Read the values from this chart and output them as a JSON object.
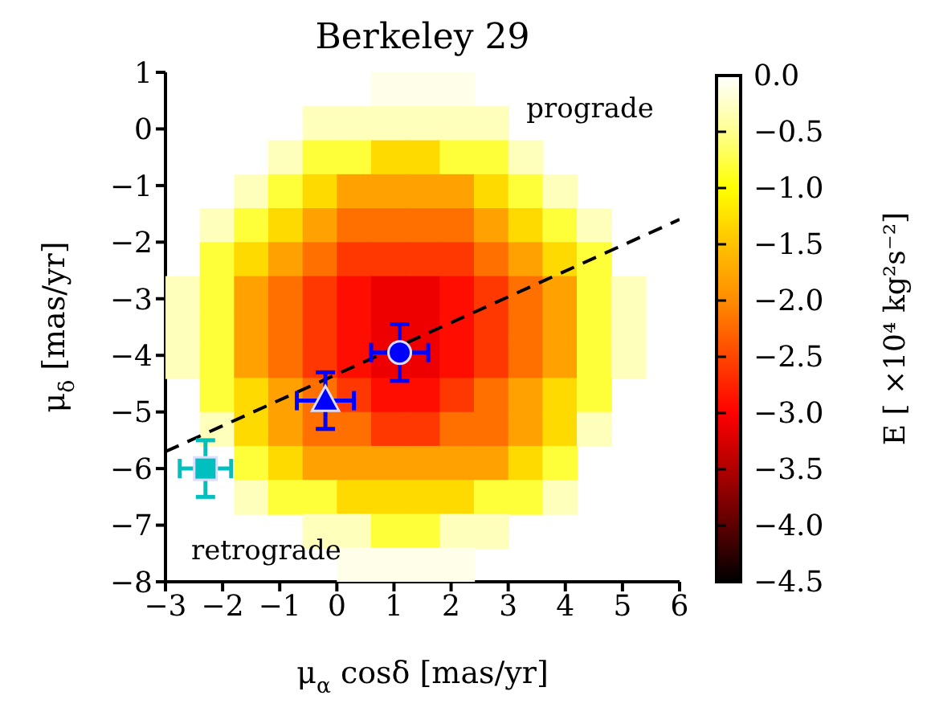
{
  "chart_data": {
    "type": "heatmap",
    "title": "Berkeley 29",
    "xlabel": "μ$_{α}$ cosδ [mas/yr]",
    "ylabel": "μ$_{δ}$ [mas/yr]",
    "clabel": "E [ ×10⁴ kg²s⁻²]",
    "xlim": [
      -3,
      6
    ],
    "ylim": [
      -8,
      1
    ],
    "xticks": [
      {
        "value": -3,
        "label": "−3"
      },
      {
        "value": -2,
        "label": "−2"
      },
      {
        "value": -1,
        "label": "−1"
      },
      {
        "value": 0,
        "label": "0"
      },
      {
        "value": 1,
        "label": "1"
      },
      {
        "value": 2,
        "label": "2"
      },
      {
        "value": 3,
        "label": "3"
      },
      {
        "value": 4,
        "label": "4"
      },
      {
        "value": 5,
        "label": "5"
      },
      {
        "value": 6,
        "label": "6"
      }
    ],
    "yticks": [
      {
        "value": 1,
        "label": "1"
      },
      {
        "value": 0,
        "label": "0"
      },
      {
        "value": -1,
        "label": "−1"
      },
      {
        "value": -2,
        "label": "−2"
      },
      {
        "value": -3,
        "label": "−3"
      },
      {
        "value": -4,
        "label": "−4"
      },
      {
        "value": -5,
        "label": "−5"
      },
      {
        "value": -6,
        "label": "−6"
      },
      {
        "value": -7,
        "label": "−7"
      },
      {
        "value": -8,
        "label": "−8"
      }
    ],
    "cells": [
      [
        null,
        null,
        null,
        null,
        null,
        null,
        -0.1,
        -0.1,
        -0.1,
        null,
        null,
        null,
        null,
        null,
        null
      ],
      [
        null,
        null,
        null,
        null,
        -0.3,
        -0.3,
        -0.3,
        -0.3,
        -0.3,
        -0.3,
        null,
        null,
        null,
        null,
        null
      ],
      [
        null,
        null,
        null,
        -0.3,
        -0.8,
        -0.8,
        -1.3,
        -1.3,
        -0.8,
        -0.8,
        -0.3,
        null,
        null,
        null,
        null
      ],
      [
        null,
        null,
        -0.3,
        -0.8,
        -1.3,
        -1.8,
        -1.8,
        -1.8,
        -1.8,
        -1.3,
        -0.8,
        -0.3,
        null,
        null,
        null
      ],
      [
        null,
        -0.3,
        -0.8,
        -1.3,
        -1.8,
        -2.2,
        -2.2,
        -2.2,
        -2.2,
        -1.8,
        -1.3,
        -0.8,
        -0.3,
        null,
        null
      ],
      [
        null,
        -0.8,
        -1.3,
        -1.8,
        -2.2,
        -2.6,
        -2.6,
        -2.6,
        -2.6,
        -2.2,
        -1.8,
        -1.3,
        -0.8,
        null,
        null
      ],
      [
        -0.3,
        -0.8,
        -1.8,
        -2.2,
        -2.6,
        -2.9,
        -3.1,
        -3.1,
        -2.9,
        -2.6,
        -2.2,
        -1.8,
        -0.8,
        -0.3,
        null
      ],
      [
        -0.3,
        -0.8,
        -1.8,
        -2.2,
        -2.6,
        -2.9,
        -3.1,
        -3.1,
        -2.9,
        -2.6,
        -2.2,
        -1.8,
        -0.8,
        -0.3,
        null
      ],
      [
        -0.3,
        -0.8,
        -1.8,
        -2.2,
        -2.6,
        -2.9,
        -3.1,
        -3.1,
        -2.9,
        -2.6,
        -2.2,
        -1.8,
        -0.8,
        -0.3,
        null
      ],
      [
        null,
        -0.8,
        -1.3,
        -1.8,
        -2.2,
        -2.6,
        -2.9,
        -2.9,
        -2.6,
        -2.2,
        -1.8,
        -1.3,
        -0.8,
        null,
        null
      ],
      [
        null,
        -0.3,
        -1.3,
        -1.8,
        -2.2,
        -2.2,
        -2.6,
        -2.6,
        -2.2,
        -2.2,
        -1.8,
        -1.3,
        -0.3,
        null,
        null
      ],
      [
        null,
        null,
        -0.8,
        -1.3,
        -1.8,
        -1.8,
        -1.8,
        -1.8,
        -1.8,
        -1.8,
        -1.3,
        -0.8,
        null,
        null,
        null
      ],
      [
        null,
        null,
        -0.3,
        -0.8,
        -0.8,
        -1.3,
        -1.3,
        -1.3,
        -1.3,
        -0.8,
        -0.8,
        -0.3,
        null,
        null,
        null
      ],
      [
        null,
        null,
        null,
        null,
        -0.3,
        -0.3,
        -0.8,
        -0.8,
        -0.3,
        -0.3,
        null,
        null,
        null,
        null,
        null
      ],
      [
        null,
        null,
        null,
        null,
        null,
        -0.1,
        -0.1,
        -0.1,
        -0.1,
        null,
        null,
        null,
        null,
        null,
        null
      ]
    ],
    "clim": [
      -4.5,
      0
    ],
    "cticks": [
      {
        "value": 0,
        "label": "0.0"
      },
      {
        "value": -0.5,
        "label": "−0.5"
      },
      {
        "value": -1,
        "label": "−1.0"
      },
      {
        "value": -1.5,
        "label": "−1.5"
      },
      {
        "value": -2,
        "label": "−2.0"
      },
      {
        "value": -2.5,
        "label": "−2.5"
      },
      {
        "value": -3,
        "label": "−3.0"
      },
      {
        "value": -3.5,
        "label": "−3.5"
      },
      {
        "value": -4,
        "label": "−4.0"
      },
      {
        "value": -4.5,
        "label": "−4.5"
      }
    ],
    "series": [
      {
        "type": "line",
        "x": [
          -3,
          6
        ],
        "values": [
          -5.7,
          -1.6
        ],
        "color": "#000000",
        "line_style": "dashed",
        "marker": "none"
      },
      {
        "type": "scatter",
        "x": [
          1.1
        ],
        "values": [
          -3.95
        ],
        "errors": [
          0.5
        ],
        "xerrors": [
          0.5
        ],
        "color": "#0000ff",
        "marker": "circle"
      },
      {
        "type": "scatter",
        "x": [
          -0.2
        ],
        "values": [
          -4.8
        ],
        "errors": [
          0.5
        ],
        "xerrors": [
          0.5
        ],
        "color": "#0000ff",
        "marker": "triangle"
      },
      {
        "type": "scatter",
        "x": [
          -2.3
        ],
        "values": [
          -6.0
        ],
        "errors": [
          0.5
        ],
        "xerrors": [
          0.45
        ],
        "color": "#00bfbf",
        "marker": "square"
      }
    ],
    "annotations": [
      "prograde",
      "retrograde"
    ]
  }
}
